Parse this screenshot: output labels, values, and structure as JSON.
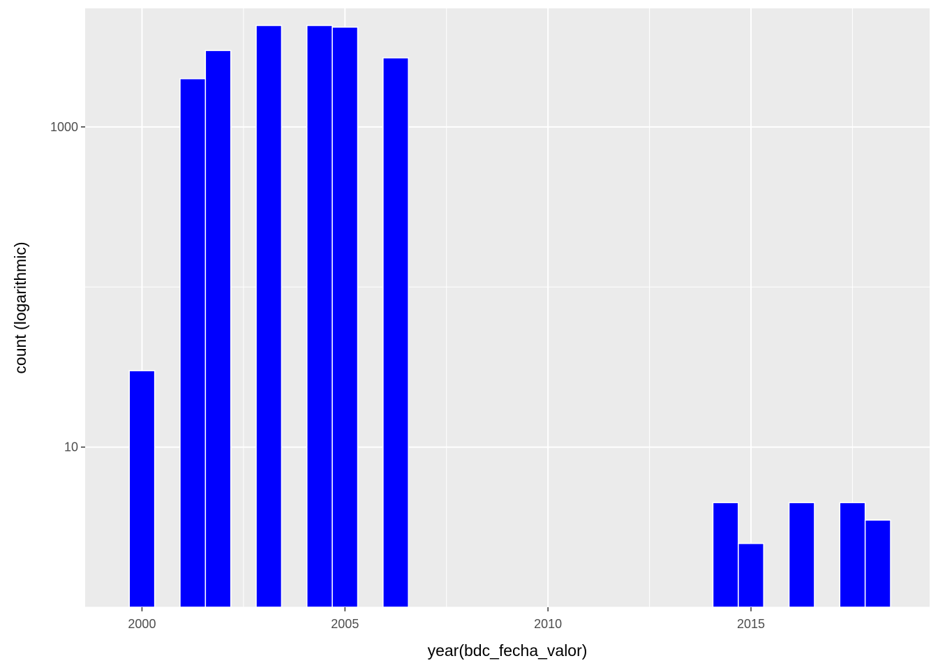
{
  "chart_data": {
    "type": "bar",
    "title": "",
    "xlabel": "year(bdc_fecha_valor)",
    "ylabel": "count (logarithmic)",
    "y_scale": "log10",
    "xlim": [
      1998.6,
      2019.4
    ],
    "ylim": [
      1,
      5500
    ],
    "x_ticks": [
      2000,
      2005,
      2010,
      2015
    ],
    "y_ticks": [
      10,
      1000
    ],
    "grid": true,
    "panel_background": "#ebebeb",
    "bar_color": "#0000ff",
    "bar_outline_color": "#ffffff",
    "bar_width_years": 0.625,
    "x": [
      2000,
      2001.25,
      2001.875,
      2003.125,
      2004.375,
      2005.0,
      2006.25,
      2014.375,
      2015.0,
      2016.25,
      2017.5,
      2018.125
    ],
    "values": [
      30,
      2000,
      3000,
      4300,
      4300,
      4200,
      2700,
      4.5,
      2.5,
      4.5,
      4.5,
      3.5
    ]
  }
}
